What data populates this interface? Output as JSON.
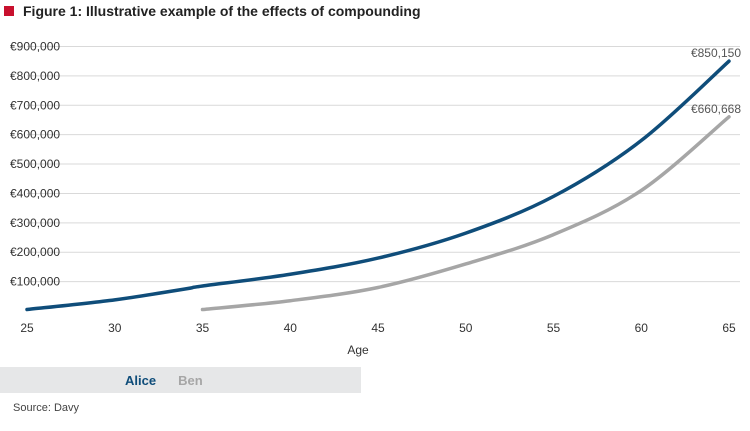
{
  "title": "Figure 1: Illustrative example of the effects of compounding",
  "colors": {
    "title_marker": "#c8102e",
    "alice": "#0f4d7a",
    "ben": "#a6a6a6",
    "grid": "#d9d9d9",
    "legend_bg": "#e6e7e8"
  },
  "legend": {
    "alice": "Alice",
    "ben": "Ben"
  },
  "source": "Source: Davy",
  "chart_data": {
    "type": "line",
    "xlabel": "Age",
    "ylabel": "",
    "xlim": [
      25,
      65
    ],
    "ylim": [
      0,
      900000
    ],
    "grid": true,
    "legend_position": "bottom-left",
    "x_ticks": [
      "25",
      "30",
      "35",
      "40",
      "45",
      "50",
      "55",
      "60",
      "65"
    ],
    "y_ticks": [
      "€100,000",
      "€200,000",
      "€300,000",
      "€400,000",
      "€500,000",
      "€600,000",
      "€700,000",
      "€800,000",
      "€900,000"
    ],
    "series": [
      {
        "name": "Alice",
        "color": "#0f4d7a",
        "x": [
          25,
          30,
          34,
          35,
          40,
          45,
          50,
          55,
          60,
          65
        ],
        "y": [
          5000,
          38000,
          75000,
          85000,
          125000,
          180000,
          265000,
          390000,
          580000,
          850150
        ],
        "end_label": "€850,150"
      },
      {
        "name": "Ben",
        "color": "#a6a6a6",
        "x": [
          35,
          40,
          45,
          50,
          55,
          60,
          65
        ],
        "y": [
          5000,
          35000,
          80000,
          160000,
          260000,
          410000,
          660668
        ],
        "end_label": "€660,668"
      }
    ]
  }
}
